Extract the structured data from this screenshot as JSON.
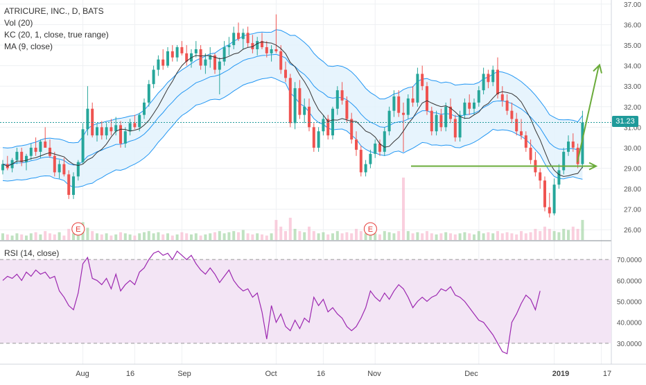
{
  "header": {
    "symbol_line": "ATRICURE, INC., D, BATS",
    "indicators": [
      "Vol (20)",
      "KC (20, 1, close, true range)",
      "MA (9, close)"
    ]
  },
  "rsi_label": "RSI (14, close)",
  "last_price": "31.23",
  "colors": {
    "up": "#26a69a",
    "down": "#ef5350",
    "channel": "#2196f3",
    "channel_fill": "#e3f2fd",
    "ma": "#333333",
    "rsi_line": "#9c27b0",
    "rsi_band": "#f3e5f5",
    "annotation": "#6aab3a",
    "earnings": "#e53935"
  },
  "chart_data": [
    {
      "type": "candlestick",
      "title": "ATRICURE, INC., D, BATS",
      "y_ticks": [
        "26.00",
        "27.00",
        "28.00",
        "29.00",
        "30.00",
        "31.00",
        "32.00",
        "33.00",
        "34.00",
        "35.00",
        "36.00",
        "37.00"
      ],
      "ylim": [
        25.5,
        37.2
      ],
      "x_ticks": [
        "Aug",
        "16",
        "Sep",
        "Oct",
        "16",
        "Nov",
        "Dec",
        "2019",
        "17"
      ],
      "earnings_markers": [
        "E",
        "E"
      ],
      "last_value": 31.23,
      "candles": [
        {
          "o": 28.9,
          "h": 29.4,
          "l": 28.7,
          "c": 29.2
        },
        {
          "o": 29.2,
          "h": 29.6,
          "l": 28.9,
          "c": 29.0
        },
        {
          "o": 29.0,
          "h": 29.5,
          "l": 28.8,
          "c": 29.4
        },
        {
          "o": 29.4,
          "h": 30.0,
          "l": 29.2,
          "c": 29.8
        },
        {
          "o": 29.8,
          "h": 30.0,
          "l": 29.1,
          "c": 29.3
        },
        {
          "o": 29.3,
          "h": 29.7,
          "l": 28.9,
          "c": 29.6
        },
        {
          "o": 29.6,
          "h": 30.2,
          "l": 29.4,
          "c": 30.0
        },
        {
          "o": 30.0,
          "h": 30.5,
          "l": 29.6,
          "c": 29.8
        },
        {
          "o": 29.8,
          "h": 30.4,
          "l": 29.5,
          "c": 30.3
        },
        {
          "o": 30.3,
          "h": 31.0,
          "l": 30.0,
          "c": 30.0
        },
        {
          "o": 30.0,
          "h": 30.4,
          "l": 29.5,
          "c": 29.6
        },
        {
          "o": 29.6,
          "h": 29.8,
          "l": 28.6,
          "c": 28.8
        },
        {
          "o": 28.8,
          "h": 29.4,
          "l": 28.5,
          "c": 29.2
        },
        {
          "o": 29.2,
          "h": 29.5,
          "l": 28.6,
          "c": 28.7
        },
        {
          "o": 28.7,
          "h": 28.9,
          "l": 27.5,
          "c": 27.7
        },
        {
          "o": 27.7,
          "h": 28.8,
          "l": 27.5,
          "c": 28.6
        },
        {
          "o": 28.6,
          "h": 29.4,
          "l": 28.4,
          "c": 29.3
        },
        {
          "o": 29.3,
          "h": 31.2,
          "l": 29.2,
          "c": 30.9
        },
        {
          "o": 30.9,
          "h": 33.0,
          "l": 30.6,
          "c": 31.9
        },
        {
          "o": 31.9,
          "h": 32.2,
          "l": 30.5,
          "c": 30.6
        },
        {
          "o": 30.6,
          "h": 31.2,
          "l": 30.3,
          "c": 31.0
        },
        {
          "o": 31.0,
          "h": 31.3,
          "l": 30.4,
          "c": 30.6
        },
        {
          "o": 30.6,
          "h": 31.2,
          "l": 30.4,
          "c": 31.0
        },
        {
          "o": 31.0,
          "h": 31.4,
          "l": 30.6,
          "c": 30.8
        },
        {
          "o": 30.8,
          "h": 31.5,
          "l": 30.6,
          "c": 31.1
        },
        {
          "o": 31.1,
          "h": 31.3,
          "l": 30.0,
          "c": 30.2
        },
        {
          "o": 30.2,
          "h": 31.0,
          "l": 30.0,
          "c": 30.8
        },
        {
          "o": 30.8,
          "h": 31.4,
          "l": 30.6,
          "c": 31.2
        },
        {
          "o": 31.2,
          "h": 31.6,
          "l": 30.9,
          "c": 31.0
        },
        {
          "o": 31.0,
          "h": 31.7,
          "l": 30.8,
          "c": 31.6
        },
        {
          "o": 31.6,
          "h": 32.4,
          "l": 31.4,
          "c": 32.2
        },
        {
          "o": 32.2,
          "h": 33.3,
          "l": 32.0,
          "c": 33.1
        },
        {
          "o": 33.1,
          "h": 34.0,
          "l": 32.9,
          "c": 33.8
        },
        {
          "o": 33.8,
          "h": 34.5,
          "l": 33.5,
          "c": 34.3
        },
        {
          "o": 34.3,
          "h": 34.8,
          "l": 33.8,
          "c": 34.0
        },
        {
          "o": 34.0,
          "h": 34.9,
          "l": 33.9,
          "c": 34.7
        },
        {
          "o": 34.7,
          "h": 35.0,
          "l": 34.2,
          "c": 34.4
        },
        {
          "o": 34.4,
          "h": 35.0,
          "l": 34.2,
          "c": 34.9
        },
        {
          "o": 34.9,
          "h": 35.2,
          "l": 34.5,
          "c": 34.6
        },
        {
          "o": 34.6,
          "h": 35.0,
          "l": 34.0,
          "c": 34.2
        },
        {
          "o": 34.2,
          "h": 34.8,
          "l": 33.9,
          "c": 34.6
        },
        {
          "o": 34.6,
          "h": 35.2,
          "l": 34.4,
          "c": 34.8
        },
        {
          "o": 34.8,
          "h": 35.0,
          "l": 33.8,
          "c": 34.0
        },
        {
          "o": 34.0,
          "h": 34.6,
          "l": 33.6,
          "c": 34.3
        },
        {
          "o": 34.3,
          "h": 34.9,
          "l": 33.9,
          "c": 34.5
        },
        {
          "o": 34.5,
          "h": 34.6,
          "l": 33.6,
          "c": 33.8
        },
        {
          "o": 33.8,
          "h": 34.4,
          "l": 32.6,
          "c": 34.2
        },
        {
          "o": 34.2,
          "h": 35.2,
          "l": 34.0,
          "c": 34.9
        },
        {
          "o": 34.9,
          "h": 35.4,
          "l": 34.5,
          "c": 35.0
        },
        {
          "o": 35.0,
          "h": 35.9,
          "l": 34.8,
          "c": 35.6
        },
        {
          "o": 35.6,
          "h": 36.1,
          "l": 35.2,
          "c": 35.3
        },
        {
          "o": 35.3,
          "h": 35.8,
          "l": 34.8,
          "c": 35.6
        },
        {
          "o": 35.6,
          "h": 35.9,
          "l": 34.9,
          "c": 35.1
        },
        {
          "o": 35.1,
          "h": 35.5,
          "l": 34.6,
          "c": 34.8
        },
        {
          "o": 34.8,
          "h": 35.4,
          "l": 34.5,
          "c": 35.2
        },
        {
          "o": 35.2,
          "h": 35.6,
          "l": 34.8,
          "c": 34.9
        },
        {
          "o": 34.9,
          "h": 35.2,
          "l": 34.4,
          "c": 34.6
        },
        {
          "o": 34.6,
          "h": 35.0,
          "l": 34.2,
          "c": 34.8
        },
        {
          "o": 34.8,
          "h": 36.5,
          "l": 34.6,
          "c": 34.7
        },
        {
          "o": 34.7,
          "h": 35.0,
          "l": 33.6,
          "c": 33.8
        },
        {
          "o": 33.8,
          "h": 34.2,
          "l": 33.2,
          "c": 33.4
        },
        {
          "o": 33.4,
          "h": 33.6,
          "l": 31.0,
          "c": 31.2
        },
        {
          "o": 31.2,
          "h": 33.2,
          "l": 30.9,
          "c": 32.9
        },
        {
          "o": 32.9,
          "h": 33.3,
          "l": 31.4,
          "c": 31.6
        },
        {
          "o": 31.6,
          "h": 32.4,
          "l": 31.2,
          "c": 32.0
        },
        {
          "o": 32.0,
          "h": 32.4,
          "l": 30.8,
          "c": 31.0
        },
        {
          "o": 31.0,
          "h": 31.2,
          "l": 29.8,
          "c": 30.0
        },
        {
          "o": 30.0,
          "h": 31.0,
          "l": 29.8,
          "c": 30.8
        },
        {
          "o": 30.8,
          "h": 31.6,
          "l": 30.6,
          "c": 31.4
        },
        {
          "o": 31.4,
          "h": 31.6,
          "l": 30.4,
          "c": 30.6
        },
        {
          "o": 30.6,
          "h": 32.0,
          "l": 30.4,
          "c": 31.9
        },
        {
          "o": 31.9,
          "h": 33.0,
          "l": 31.6,
          "c": 32.8
        },
        {
          "o": 32.8,
          "h": 33.2,
          "l": 32.1,
          "c": 32.3
        },
        {
          "o": 32.3,
          "h": 32.5,
          "l": 31.2,
          "c": 31.4
        },
        {
          "o": 31.4,
          "h": 31.7,
          "l": 30.2,
          "c": 30.4
        },
        {
          "o": 30.4,
          "h": 30.8,
          "l": 29.6,
          "c": 29.9
        },
        {
          "o": 29.9,
          "h": 30.1,
          "l": 28.6,
          "c": 28.8
        },
        {
          "o": 28.8,
          "h": 29.4,
          "l": 28.6,
          "c": 29.2
        },
        {
          "o": 29.2,
          "h": 29.9,
          "l": 29.0,
          "c": 29.7
        },
        {
          "o": 29.7,
          "h": 30.4,
          "l": 29.5,
          "c": 30.2
        },
        {
          "o": 30.2,
          "h": 30.4,
          "l": 29.6,
          "c": 29.8
        },
        {
          "o": 29.8,
          "h": 31.0,
          "l": 29.6,
          "c": 30.8
        },
        {
          "o": 30.8,
          "h": 32.0,
          "l": 30.6,
          "c": 31.8
        },
        {
          "o": 31.8,
          "h": 32.8,
          "l": 31.5,
          "c": 32.5
        },
        {
          "o": 32.5,
          "h": 32.8,
          "l": 31.5,
          "c": 31.7
        },
        {
          "o": 31.7,
          "h": 32.2,
          "l": 29.8,
          "c": 31.6
        },
        {
          "o": 31.6,
          "h": 32.6,
          "l": 31.4,
          "c": 32.4
        },
        {
          "o": 32.4,
          "h": 33.0,
          "l": 32.0,
          "c": 32.2
        },
        {
          "o": 32.2,
          "h": 33.9,
          "l": 32.0,
          "c": 33.6
        },
        {
          "o": 33.6,
          "h": 34.0,
          "l": 32.8,
          "c": 33.0
        },
        {
          "o": 33.0,
          "h": 33.2,
          "l": 31.6,
          "c": 31.8
        },
        {
          "o": 31.8,
          "h": 32.0,
          "l": 30.6,
          "c": 30.8
        },
        {
          "o": 30.8,
          "h": 31.8,
          "l": 30.6,
          "c": 31.6
        },
        {
          "o": 31.6,
          "h": 31.9,
          "l": 30.8,
          "c": 31.0
        },
        {
          "o": 31.0,
          "h": 32.2,
          "l": 30.8,
          "c": 32.0
        },
        {
          "o": 32.0,
          "h": 32.4,
          "l": 31.2,
          "c": 31.4
        },
        {
          "o": 31.4,
          "h": 31.6,
          "l": 30.3,
          "c": 30.5
        },
        {
          "o": 30.5,
          "h": 31.8,
          "l": 30.3,
          "c": 31.6
        },
        {
          "o": 31.6,
          "h": 32.4,
          "l": 31.4,
          "c": 32.2
        },
        {
          "o": 32.2,
          "h": 32.6,
          "l": 31.6,
          "c": 31.9
        },
        {
          "o": 31.9,
          "h": 32.4,
          "l": 31.6,
          "c": 32.2
        },
        {
          "o": 32.2,
          "h": 33.0,
          "l": 32.0,
          "c": 32.8
        },
        {
          "o": 32.8,
          "h": 33.9,
          "l": 32.6,
          "c": 33.6
        },
        {
          "o": 33.6,
          "h": 33.8,
          "l": 32.9,
          "c": 33.2
        },
        {
          "o": 33.2,
          "h": 34.0,
          "l": 33.0,
          "c": 33.8
        },
        {
          "o": 33.8,
          "h": 34.4,
          "l": 32.4,
          "c": 32.6
        },
        {
          "o": 32.6,
          "h": 33.0,
          "l": 32.0,
          "c": 32.3
        },
        {
          "o": 32.3,
          "h": 32.6,
          "l": 31.6,
          "c": 31.8
        },
        {
          "o": 31.8,
          "h": 32.2,
          "l": 31.2,
          "c": 31.4
        },
        {
          "o": 31.4,
          "h": 31.7,
          "l": 30.6,
          "c": 30.8
        },
        {
          "o": 30.8,
          "h": 31.4,
          "l": 30.4,
          "c": 30.6
        },
        {
          "o": 30.6,
          "h": 30.8,
          "l": 29.8,
          "c": 30.0
        },
        {
          "o": 30.0,
          "h": 30.4,
          "l": 29.2,
          "c": 29.4
        },
        {
          "o": 29.4,
          "h": 29.8,
          "l": 28.6,
          "c": 28.8
        },
        {
          "o": 28.8,
          "h": 29.0,
          "l": 28.0,
          "c": 28.4
        },
        {
          "o": 28.4,
          "h": 28.6,
          "l": 26.9,
          "c": 27.1
        },
        {
          "o": 27.1,
          "h": 27.8,
          "l": 26.6,
          "c": 26.8
        },
        {
          "o": 26.8,
          "h": 28.5,
          "l": 26.7,
          "c": 28.2
        },
        {
          "o": 28.2,
          "h": 29.2,
          "l": 28.0,
          "c": 28.9
        },
        {
          "o": 28.9,
          "h": 30.0,
          "l": 28.7,
          "c": 29.8
        },
        {
          "o": 29.8,
          "h": 30.6,
          "l": 29.6,
          "c": 30.3
        },
        {
          "o": 30.3,
          "h": 30.7,
          "l": 29.8,
          "c": 30.0
        },
        {
          "o": 30.0,
          "h": 30.2,
          "l": 29.0,
          "c": 29.2
        },
        {
          "o": 29.2,
          "h": 31.8,
          "l": 29.0,
          "c": 31.23
        }
      ],
      "volumes": [
        0.3,
        0.25,
        0.2,
        0.3,
        0.25,
        0.2,
        0.3,
        0.35,
        0.25,
        0.4,
        0.3,
        0.25,
        0.35,
        0.2,
        0.5,
        0.3,
        0.25,
        0.8,
        0.55,
        0.4,
        0.3,
        0.25,
        0.3,
        0.2,
        0.25,
        0.35,
        0.3,
        0.25,
        0.2,
        0.3,
        0.35,
        0.4,
        0.3,
        0.35,
        0.25,
        0.3,
        0.2,
        0.25,
        0.35,
        0.3,
        0.25,
        0.3,
        0.2,
        0.25,
        0.3,
        0.35,
        0.4,
        0.3,
        0.35,
        0.4,
        0.35,
        0.45,
        0.3,
        0.25,
        0.3,
        0.25,
        0.2,
        0.3,
        0.9,
        0.6,
        0.4,
        1.0,
        0.5,
        0.4,
        0.35,
        0.6,
        0.4,
        0.3,
        0.35,
        0.25,
        0.3,
        0.4,
        0.3,
        0.35,
        0.3,
        0.5,
        0.4,
        0.3,
        0.35,
        0.3,
        0.25,
        0.4,
        0.35,
        0.3,
        0.4,
        2.8,
        0.4,
        0.3,
        0.35,
        0.3,
        0.4,
        0.3,
        0.25,
        0.3,
        0.35,
        0.3,
        0.25,
        0.3,
        0.35,
        0.3,
        0.25,
        0.4,
        0.3,
        0.35,
        0.3,
        0.4,
        0.3,
        0.35,
        0.3,
        0.25,
        0.4,
        0.3,
        0.35,
        0.5,
        0.4,
        0.6,
        0.5,
        0.4,
        0.35,
        0.5,
        0.45,
        0.6,
        0.5,
        0.9
      ]
    },
    {
      "type": "line",
      "title": "RSI (14, close)",
      "y_ticks": [
        "30.0000",
        "40.0000",
        "50.0000",
        "60.0000",
        "70.0000"
      ],
      "ylim": [
        20,
        78
      ],
      "band": [
        30,
        70
      ],
      "values": [
        60,
        62,
        61,
        63,
        60,
        64,
        62,
        65,
        63,
        64,
        61,
        62,
        55,
        52,
        48,
        46,
        54,
        68,
        71,
        61,
        60,
        58,
        61,
        56,
        63,
        55,
        58,
        60,
        58,
        64,
        66,
        70,
        73,
        74,
        72,
        73,
        70,
        74,
        72,
        70,
        72,
        68,
        65,
        63,
        66,
        63,
        59,
        62,
        65,
        60,
        57,
        55,
        56,
        52,
        54,
        45,
        32,
        48,
        40,
        44,
        38,
        36,
        41,
        37,
        42,
        40,
        52,
        48,
        51,
        45,
        47,
        44,
        42,
        38,
        36,
        38,
        42,
        47,
        55,
        52,
        50,
        54,
        51,
        55,
        58,
        56,
        52,
        47,
        50,
        52,
        50,
        52,
        53,
        56,
        55,
        57,
        53,
        52,
        50,
        47,
        44,
        41,
        40,
        37,
        34,
        30,
        26,
        25,
        40,
        44,
        49,
        53,
        51,
        46,
        55
      ]
    }
  ],
  "annotations": {
    "support_level": 29.1,
    "target_level": 34.0
  }
}
